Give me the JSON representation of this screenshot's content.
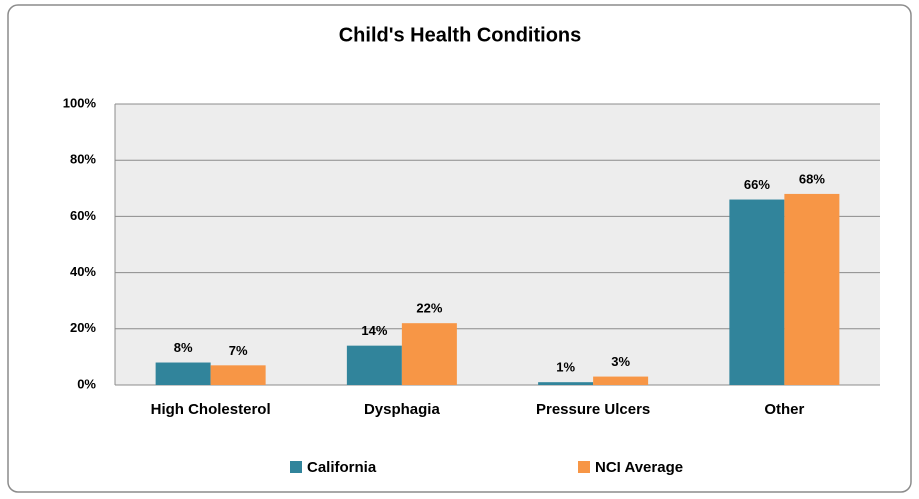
{
  "chart_data": {
    "type": "bar",
    "title": "Child's Health Conditions",
    "categories": [
      "High Cholesterol",
      "Dysphagia",
      "Pressure Ulcers",
      "Other"
    ],
    "series": [
      {
        "name": "California",
        "color": "#31849b",
        "values": [
          8,
          14,
          1,
          66
        ],
        "value_labels": [
          "8%",
          "14%",
          "1%",
          "66%"
        ]
      },
      {
        "name": "NCI Average",
        "color": "#f79646",
        "values": [
          7,
          22,
          3,
          68
        ],
        "value_labels": [
          "7%",
          "22%",
          "3%",
          "68%"
        ]
      }
    ],
    "ylim": [
      0,
      100
    ],
    "yticks": [
      {
        "value": 0,
        "label": "0%"
      },
      {
        "value": 20,
        "label": "20%"
      },
      {
        "value": 40,
        "label": "40%"
      },
      {
        "value": 60,
        "label": "60%"
      },
      {
        "value": 80,
        "label": "80%"
      },
      {
        "value": 100,
        "label": "100%"
      }
    ],
    "grid": true,
    "legend": "bottom"
  }
}
